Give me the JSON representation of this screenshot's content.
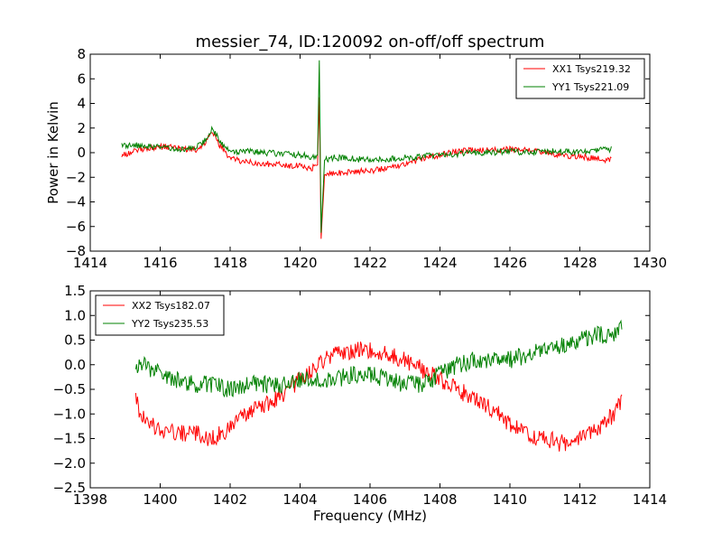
{
  "figure": {
    "title": "messier_74, ID:120092 on-off/off spectrum"
  },
  "chart_data": [
    {
      "type": "line",
      "title": "messier_74, ID:120092 on-off/off spectrum",
      "xlabel": "",
      "ylabel": "Power in Kelvin",
      "xlim": [
        1414,
        1430
      ],
      "ylim": [
        -8,
        8
      ],
      "xticks": [
        1414,
        1416,
        1418,
        1420,
        1422,
        1424,
        1426,
        1428,
        1430
      ],
      "yticks": [
        -8,
        -6,
        -4,
        -2,
        0,
        2,
        4,
        6,
        8
      ],
      "grid": false,
      "legend_position": "top-right",
      "series": [
        {
          "name": "XX1 Tsys219.32",
          "color": "#ff0000",
          "x": [
            1414.9,
            1415.5,
            1416.0,
            1416.5,
            1417.0,
            1417.3,
            1417.5,
            1417.7,
            1418.0,
            1418.5,
            1419.0,
            1419.5,
            1420.0,
            1420.3,
            1420.5,
            1420.55,
            1420.6,
            1420.7,
            1421.0,
            1421.5,
            1422.0,
            1422.5,
            1423.0,
            1423.5,
            1424.0,
            1424.5,
            1425.0,
            1425.5,
            1426.0,
            1426.5,
            1427.0,
            1427.5,
            1428.0,
            1428.5,
            1428.9
          ],
          "y": [
            -0.2,
            0.3,
            0.5,
            0.4,
            0.2,
            0.8,
            1.7,
            0.6,
            -0.5,
            -0.8,
            -0.9,
            -1.0,
            -1.1,
            -1.3,
            -1.0,
            4.5,
            -7.0,
            -1.8,
            -1.7,
            -1.5,
            -1.5,
            -1.2,
            -0.9,
            -0.5,
            -0.2,
            0.1,
            0.2,
            0.2,
            0.3,
            0.2,
            0.0,
            -0.2,
            -0.3,
            -0.5,
            -0.6
          ]
        },
        {
          "name": "YY1 Tsys221.09",
          "color": "#008000",
          "x": [
            1414.9,
            1415.5,
            1416.0,
            1416.5,
            1417.0,
            1417.3,
            1417.5,
            1417.7,
            1418.0,
            1418.5,
            1419.0,
            1419.5,
            1420.0,
            1420.3,
            1420.5,
            1420.55,
            1420.6,
            1420.7,
            1421.0,
            1421.5,
            1422.0,
            1422.5,
            1423.0,
            1423.5,
            1424.0,
            1424.5,
            1425.0,
            1425.5,
            1426.0,
            1426.5,
            1427.0,
            1427.5,
            1428.0,
            1428.5,
            1428.9
          ],
          "y": [
            0.6,
            0.6,
            0.5,
            0.3,
            0.4,
            1.0,
            2.0,
            0.9,
            0.1,
            0.1,
            0.0,
            -0.1,
            -0.2,
            -0.3,
            -0.2,
            7.5,
            -6.5,
            -0.6,
            -0.4,
            -0.5,
            -0.6,
            -0.5,
            -0.4,
            -0.3,
            -0.2,
            -0.1,
            0.0,
            0.0,
            0.1,
            0.0,
            0.1,
            0.1,
            0.1,
            0.2,
            0.3
          ]
        }
      ]
    },
    {
      "type": "line",
      "title": "",
      "xlabel": "Frequency (MHz)",
      "ylabel": "",
      "xlim": [
        1398,
        1414
      ],
      "ylim": [
        -2.5,
        1.5
      ],
      "xticks": [
        1398,
        1400,
        1402,
        1404,
        1406,
        1408,
        1410,
        1412,
        1414
      ],
      "yticks": [
        -2.5,
        -2.0,
        -1.5,
        -1.0,
        -0.5,
        0.0,
        0.5,
        1.0,
        1.5
      ],
      "grid": false,
      "legend_position": "top-left",
      "series": [
        {
          "name": "XX2 Tsys182.07",
          "color": "#ff0000",
          "x": [
            1399.3,
            1399.5,
            1400.0,
            1400.5,
            1401.0,
            1401.5,
            1402.0,
            1402.5,
            1403.0,
            1403.5,
            1404.0,
            1404.5,
            1405.0,
            1405.5,
            1406.0,
            1406.5,
            1407.0,
            1407.5,
            1408.0,
            1408.5,
            1409.0,
            1409.5,
            1410.0,
            1410.5,
            1411.0,
            1411.5,
            1412.0,
            1412.5,
            1413.0,
            1413.2
          ],
          "y": [
            -0.7,
            -1.1,
            -1.3,
            -1.4,
            -1.4,
            -1.5,
            -1.3,
            -1.0,
            -0.8,
            -0.6,
            -0.3,
            0.0,
            0.2,
            0.3,
            0.3,
            0.2,
            0.1,
            -0.1,
            -0.3,
            -0.5,
            -0.7,
            -0.9,
            -1.2,
            -1.4,
            -1.5,
            -1.6,
            -1.5,
            -1.3,
            -1.0,
            -0.7
          ]
        },
        {
          "name": "YY2 Tsys235.53",
          "color": "#008000",
          "x": [
            1399.3,
            1399.5,
            1400.0,
            1400.5,
            1401.0,
            1401.5,
            1402.0,
            1402.5,
            1403.0,
            1403.5,
            1404.0,
            1404.5,
            1405.0,
            1405.5,
            1406.0,
            1406.5,
            1407.0,
            1407.5,
            1408.0,
            1408.5,
            1409.0,
            1409.5,
            1410.0,
            1410.5,
            1411.0,
            1411.5,
            1412.0,
            1412.5,
            1413.0,
            1413.2
          ],
          "y": [
            -0.1,
            0.0,
            -0.2,
            -0.3,
            -0.4,
            -0.4,
            -0.5,
            -0.4,
            -0.4,
            -0.4,
            -0.3,
            -0.3,
            -0.3,
            -0.2,
            -0.2,
            -0.3,
            -0.4,
            -0.4,
            -0.2,
            0.0,
            0.1,
            0.1,
            0.1,
            0.2,
            0.3,
            0.4,
            0.5,
            0.6,
            0.6,
            0.8
          ]
        }
      ]
    }
  ]
}
